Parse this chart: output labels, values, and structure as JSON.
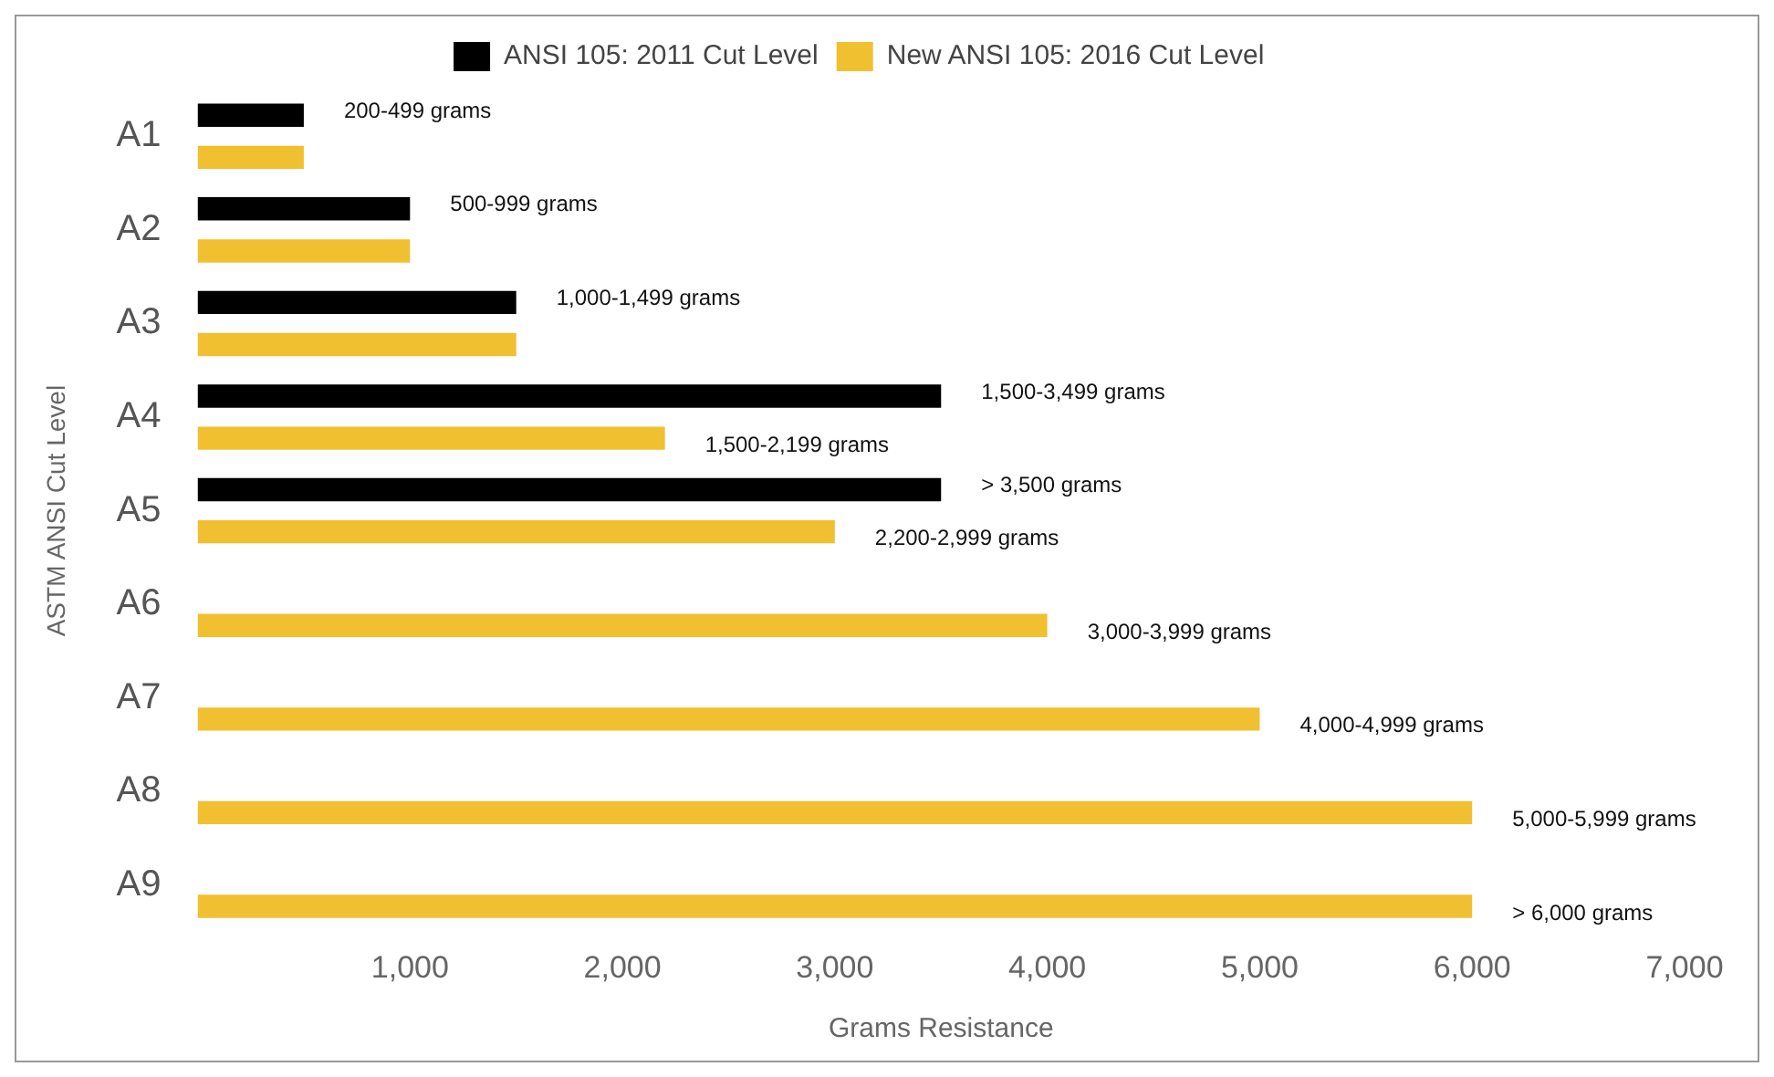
{
  "chart_data": {
    "type": "bar",
    "orientation": "horizontal",
    "xlabel": "Grams Resistance",
    "ylabel": "ASTM ANSI Cut Level",
    "categories": [
      "A1",
      "A2",
      "A3",
      "A4",
      "A5",
      "A6",
      "A7",
      "A8",
      "A9"
    ],
    "series": [
      {
        "name": "ANSI 105: 2011 Cut Level",
        "color": "#000000",
        "values": [
          500,
          1000,
          1500,
          3500,
          3500,
          null,
          null,
          null,
          null
        ],
        "value_labels": [
          "200-499 grams",
          "500-999 grams",
          "1,000-1,499 grams",
          "1,500-3,499 grams",
          "> 3,500 grams",
          null,
          null,
          null,
          null
        ]
      },
      {
        "name": "New ANSI 105: 2016 Cut Level",
        "color": "#f0c030",
        "values": [
          500,
          1000,
          1500,
          2200,
          3000,
          4000,
          5000,
          6000,
          6000
        ],
        "value_labels": [
          null,
          null,
          null,
          "1,500-2,199 grams",
          "2,200-2,999 grams",
          "3,000-3,999 grams",
          "4,000-4,999 grams",
          "5,000-5,999 grams",
          "> 6,000 grams"
        ]
      }
    ],
    "xlim": [
      0,
      7000
    ],
    "xticks": [
      {
        "value": 1000,
        "label": "1,000"
      },
      {
        "value": 2000,
        "label": "2,000"
      },
      {
        "value": 3000,
        "label": "3,000"
      },
      {
        "value": 4000,
        "label": "4,000"
      },
      {
        "value": 5000,
        "label": "5,000"
      },
      {
        "value": 6000,
        "label": "6,000"
      },
      {
        "value": 7000,
        "label": "7,000"
      }
    ],
    "grid": false,
    "legend": "top"
  }
}
